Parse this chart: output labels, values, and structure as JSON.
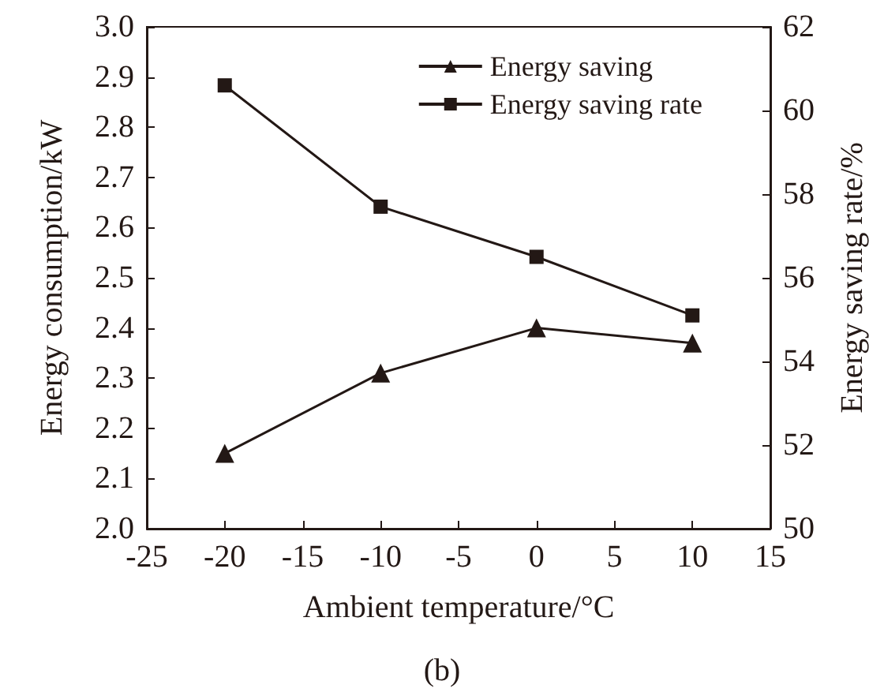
{
  "chart_data": {
    "type": "line",
    "xlabel": "Ambient temperature/°C",
    "ylabel": "Energy consumption/kW",
    "y2label": "Energy saving rate/%",
    "annotations": [
      "(b)"
    ],
    "x": [
      -20,
      -10,
      0,
      10
    ],
    "series": [
      {
        "name": "Energy saving",
        "color": "#231815",
        "values": [
          2.15,
          2.31,
          2.4,
          2.37
        ],
        "marker": "triangle"
      },
      {
        "name": "Energy saving rate",
        "color": "#231815",
        "values": [
          60.6,
          57.7,
          56.5,
          55.1
        ],
        "marker": "square",
        "axis": "y2"
      }
    ],
    "xlim": [
      -25,
      15
    ],
    "xticks": [
      -25,
      -20,
      -15,
      -10,
      -5,
      0,
      5,
      10,
      15
    ],
    "ylim": [
      2.0,
      3.0
    ],
    "yticks": [
      {
        "value": 2.0,
        "label": "2.0"
      },
      2.1,
      2.2,
      2.3,
      2.4,
      2.5,
      2.6,
      2.7,
      2.8,
      2.9,
      {
        "value": 3.0,
        "label": "3.0"
      }
    ],
    "y2lim": [
      50,
      62
    ],
    "y2ticks": [
      50,
      52,
      54,
      56,
      58,
      60,
      62
    ],
    "legend": "top right",
    "grid": false,
    "line_style": "solid"
  }
}
